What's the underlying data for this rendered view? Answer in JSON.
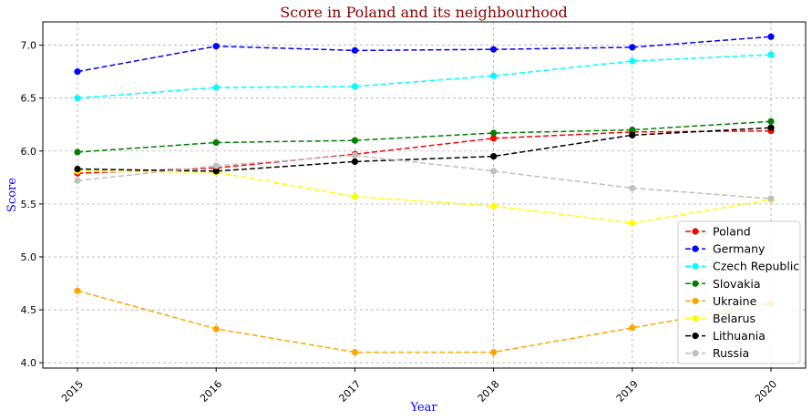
{
  "chart_data": {
    "type": "line",
    "title": "Score in Poland and its neighbourhood",
    "title_color": "#8b0000",
    "xlabel": "Year",
    "ylabel": "Score",
    "label_color": "#0000ff",
    "x": [
      2015,
      2016,
      2017,
      2018,
      2019,
      2020
    ],
    "x_tick_labels": [
      "2015",
      "2016",
      "2017",
      "2018",
      "2019",
      "2020"
    ],
    "y_ticks": [
      4.0,
      4.5,
      5.0,
      5.5,
      6.0,
      6.5,
      7.0
    ],
    "y_tick_labels": [
      "4.0",
      "4.5",
      "5.0",
      "5.5",
      "6.0",
      "6.5",
      "7.0"
    ],
    "ylim": [
      3.95,
      7.22
    ],
    "grid": true,
    "line_style": "dashed",
    "marker": "circle",
    "legend_position": "lower-right",
    "series": [
      {
        "name": "Poland",
        "color": "#ff0000",
        "values": [
          5.79,
          5.84,
          5.97,
          6.12,
          6.18,
          6.19
        ]
      },
      {
        "name": "Germany",
        "color": "#0000ff",
        "values": [
          6.75,
          6.99,
          6.95,
          6.96,
          6.98,
          7.08
        ]
      },
      {
        "name": "Czech Republic",
        "color": "#00ffff",
        "values": [
          6.5,
          6.6,
          6.61,
          6.71,
          6.85,
          6.91
        ]
      },
      {
        "name": "Slovakia",
        "color": "#008000",
        "values": [
          5.99,
          6.08,
          6.1,
          6.17,
          6.2,
          6.28
        ]
      },
      {
        "name": "Ukraine",
        "color": "#ffa500",
        "values": [
          4.68,
          4.32,
          4.1,
          4.1,
          4.33,
          4.56
        ]
      },
      {
        "name": "Belarus",
        "color": "#ffff00",
        "values": [
          5.81,
          5.8,
          5.57,
          5.48,
          5.32,
          5.54
        ]
      },
      {
        "name": "Lithuania",
        "color": "#000000",
        "values": [
          5.83,
          5.81,
          5.9,
          5.95,
          6.15,
          6.22
        ]
      },
      {
        "name": "Russia",
        "color": "#c0c0c0",
        "values": [
          5.72,
          5.86,
          5.96,
          5.81,
          5.65,
          5.55
        ]
      }
    ]
  }
}
